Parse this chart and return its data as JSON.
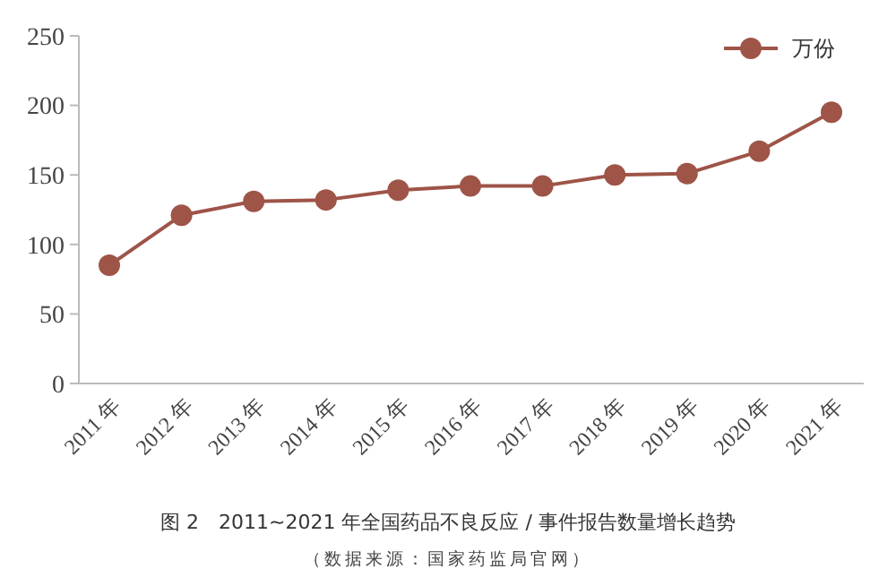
{
  "chart_data": {
    "type": "line",
    "title": "图 2　2011~2021 年全国药品不良反应 / 事件报告数量增长趋势",
    "annotations": [
      "（数据来源：国家药监局官网）"
    ],
    "categories": [
      "2011 年",
      "2012 年",
      "2013 年",
      "2014 年",
      "2015 年",
      "2016 年",
      "2017 年",
      "2018 年",
      "2019 年",
      "2020 年",
      "2021 年"
    ],
    "series": [
      {
        "name": "万份",
        "color": "#9e5447",
        "values": [
          85,
          121,
          131,
          132,
          139,
          142,
          142,
          150,
          151,
          167,
          195
        ]
      }
    ],
    "ylim": [
      0,
      250
    ],
    "yticks": [
      0,
      50,
      100,
      150,
      200,
      250
    ],
    "grid": false,
    "legend": "top right",
    "marker": "circle",
    "line_style": "solid"
  }
}
